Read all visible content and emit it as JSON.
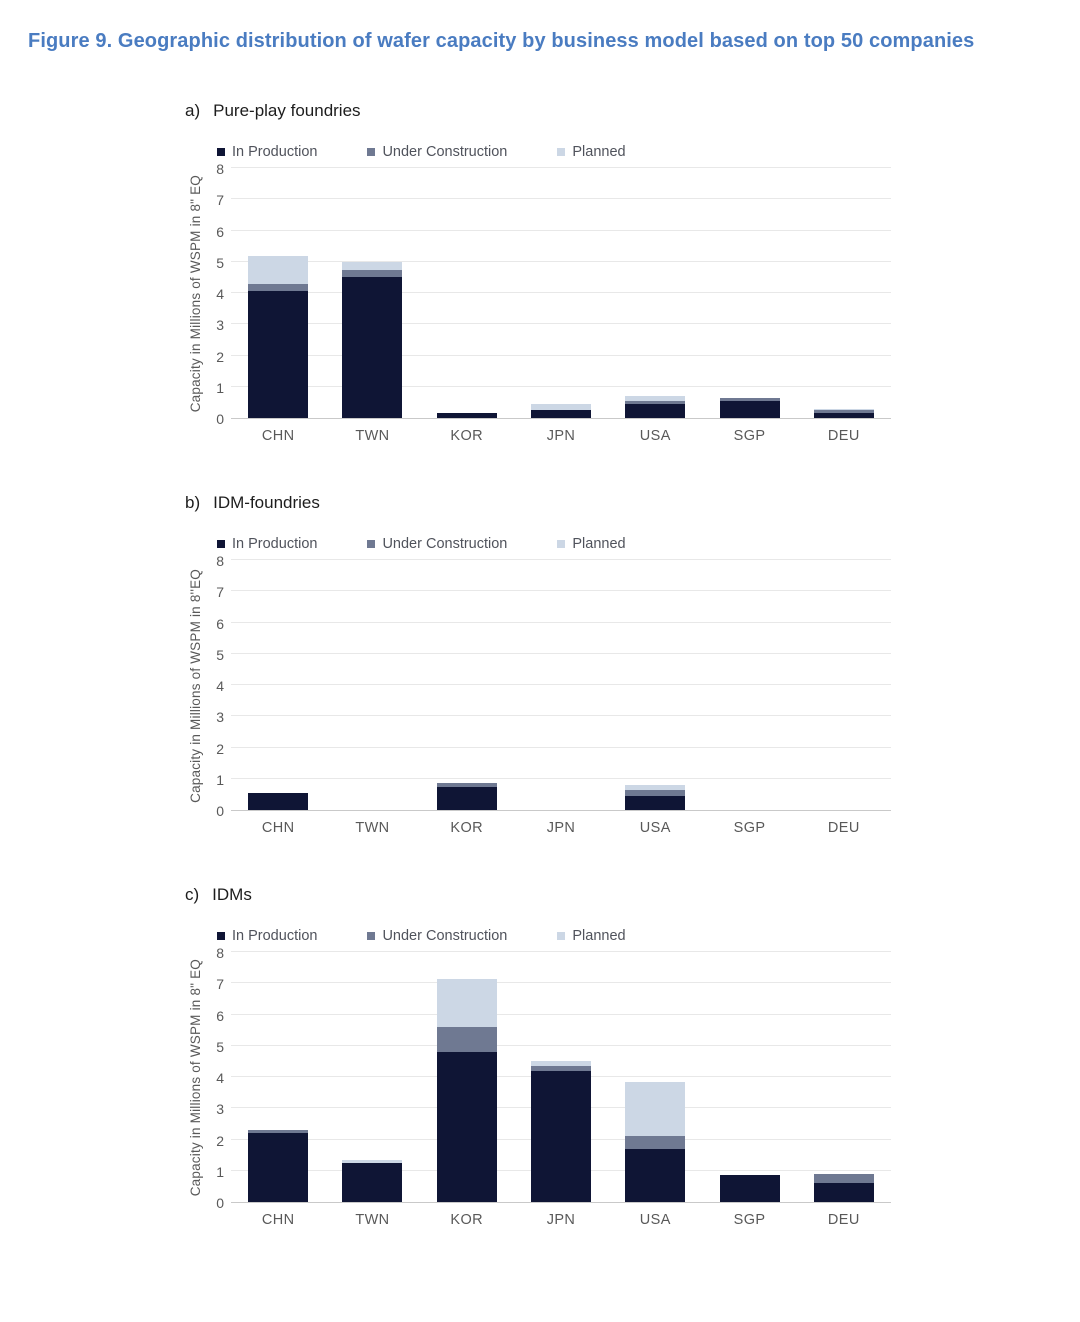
{
  "page": {
    "title": "Figure 9. Geographic distribution of wafer capacity by business model based on top 50 companies"
  },
  "colors": {
    "title_blue": "#4A7CC1",
    "in_production": "#0F1535",
    "under_construction": "#6F7992",
    "planned": "#CCD7E5",
    "gridline": "#E8E8E8",
    "axis_line": "#C9C9C9",
    "axis_text": "#595959"
  },
  "chart_data": [
    {
      "type": "bar",
      "stacked": true,
      "prefix": "a)",
      "title": "Pure-play foundries",
      "ylabel": "Capacity in Millions of WSPM in 8\" EQ",
      "ylim": [
        0,
        8
      ],
      "ytick_step": 1,
      "grid": true,
      "legend_position": "top",
      "categories": [
        "CHN",
        "TWN",
        "KOR",
        "JPN",
        "USA",
        "SGP",
        "DEU"
      ],
      "series": [
        {
          "name": "In Production",
          "color": "#0F1535",
          "values": [
            4.05,
            4.5,
            0.15,
            0.25,
            0.45,
            0.55,
            0.15
          ]
        },
        {
          "name": "Under Construction",
          "color": "#6F7992",
          "values": [
            0.25,
            0.25,
            0,
            0,
            0.1,
            0.1,
            0.1
          ]
        },
        {
          "name": "Planned",
          "color": "#CCD7E5",
          "values": [
            0.9,
            0.25,
            0,
            0.2,
            0.15,
            0,
            0.05
          ]
        }
      ]
    },
    {
      "type": "bar",
      "stacked": true,
      "prefix": "b)",
      "title": "IDM-foundries",
      "ylabel": "Capacity in Millions of WSPM in 8''EQ",
      "ylim": [
        0,
        8
      ],
      "ytick_step": 1,
      "grid": true,
      "legend_position": "top",
      "categories": [
        "CHN",
        "TWN",
        "KOR",
        "JPN",
        "USA",
        "SGP",
        "DEU"
      ],
      "series": [
        {
          "name": "In Production",
          "color": "#0F1535",
          "values": [
            0.55,
            0,
            0.75,
            0,
            0.45,
            0,
            0
          ]
        },
        {
          "name": "Under Construction",
          "color": "#6F7992",
          "values": [
            0,
            0,
            0.1,
            0,
            0.2,
            0,
            0
          ]
        },
        {
          "name": "Planned",
          "color": "#CCD7E5",
          "values": [
            0,
            0,
            0,
            0,
            0.15,
            0,
            0
          ]
        }
      ]
    },
    {
      "type": "bar",
      "stacked": true,
      "prefix": "c)",
      "title": "IDMs",
      "ylabel": "Capacity in Millions of WSPM in 8\" EQ",
      "ylim": [
        0,
        8
      ],
      "ytick_step": 1,
      "grid": true,
      "legend_position": "top",
      "categories": [
        "CHN",
        "TWN",
        "KOR",
        "JPN",
        "USA",
        "SGP",
        "DEU"
      ],
      "series": [
        {
          "name": "In Production",
          "color": "#0F1535",
          "values": [
            2.2,
            1.25,
            4.8,
            4.2,
            1.7,
            0.85,
            0.6
          ]
        },
        {
          "name": "Under Construction",
          "color": "#6F7992",
          "values": [
            0.1,
            0,
            0.8,
            0.15,
            0.4,
            0,
            0.3
          ]
        },
        {
          "name": "Planned",
          "color": "#CCD7E5",
          "values": [
            0,
            0.1,
            1.55,
            0.15,
            1.75,
            0,
            0
          ]
        }
      ]
    }
  ]
}
